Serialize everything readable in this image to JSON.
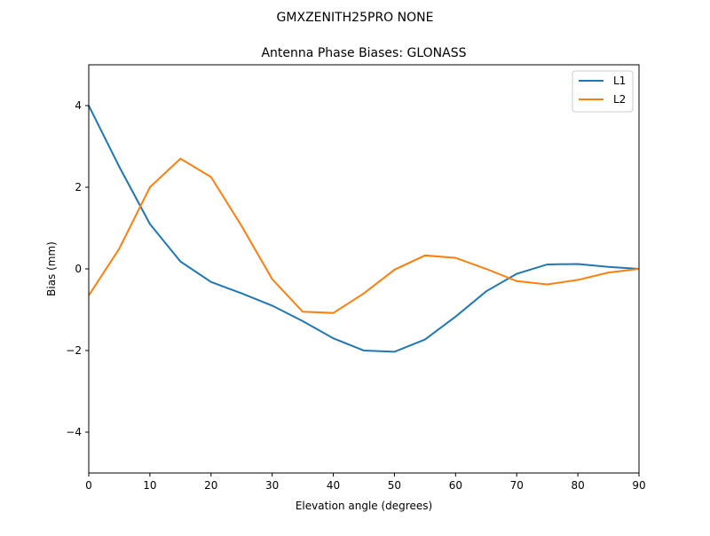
{
  "suptitle": "GMXZENITH25PRO  NONE",
  "chart_data": {
    "type": "line",
    "title": "Antenna Phase Biases: GLONASS",
    "xlabel": "Elevation angle (degrees)",
    "ylabel": "Bias (mm)",
    "xlim": [
      0,
      90
    ],
    "ylim": [
      -5,
      5
    ],
    "xticks": [
      0,
      10,
      20,
      30,
      40,
      50,
      60,
      70,
      80,
      90
    ],
    "yticks": [
      -4,
      -2,
      0,
      2,
      4
    ],
    "grid": false,
    "legend_position": "upper right",
    "x": [
      0,
      5,
      10,
      15,
      20,
      25,
      30,
      35,
      40,
      45,
      50,
      55,
      60,
      65,
      70,
      75,
      80,
      85,
      90
    ],
    "series": [
      {
        "name": "L1",
        "color": "#1f77b4",
        "values": [
          4.0,
          2.5,
          1.1,
          0.18,
          -0.32,
          -0.6,
          -0.9,
          -1.28,
          -1.7,
          -2.0,
          -2.03,
          -1.73,
          -1.17,
          -0.55,
          -0.12,
          0.11,
          0.12,
          0.05,
          0.0
        ]
      },
      {
        "name": "L2",
        "color": "#ff7f0e",
        "values": [
          -0.65,
          0.5,
          2.0,
          2.7,
          2.25,
          1.05,
          -0.25,
          -1.05,
          -1.08,
          -0.6,
          -0.02,
          0.33,
          0.27,
          0.0,
          -0.3,
          -0.38,
          -0.27,
          -0.09,
          0.0
        ]
      }
    ]
  }
}
